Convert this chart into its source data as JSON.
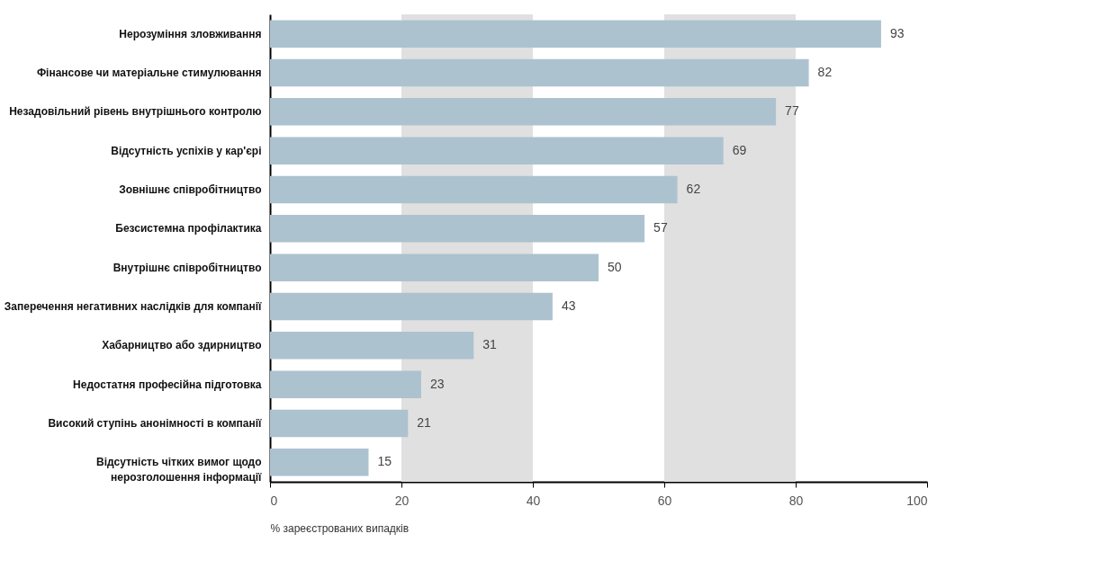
{
  "chart_data": {
    "type": "bar",
    "orientation": "horizontal",
    "xlabel": "% зареєстрованих випадків",
    "categories": [
      "Нерозуміння зловживання",
      "Фінансове чи матеріальне стимулювання",
      "Незадовільний рівень внутрішнього контролю",
      "Відсутність успіхів у кар'єрі",
      "Зовнішнє співробітництво",
      "Безсистемна профілактика",
      "Внутрішнє співробітництво",
      "Заперечення негативних наслідків для компанії",
      "Хабарництво або здирництво",
      "Недостатня професійна підготовка",
      "Високий ступінь анонімності в компанії",
      "Відсутність чітких вимог щодо\nнерозголошення інформації"
    ],
    "values": [
      93,
      82,
      77,
      69,
      62,
      57,
      50,
      43,
      31,
      23,
      21,
      15
    ],
    "color": "#adc2cf",
    "xlim": [
      0,
      100
    ],
    "xticks": [
      0,
      20,
      40,
      60,
      80,
      100
    ],
    "grid": false,
    "data_labels": true,
    "bands": [
      {
        "axis": "x",
        "from": 20,
        "to": 40,
        "color": "#e0e0e0"
      },
      {
        "axis": "x",
        "from": 60,
        "to": 80,
        "color": "#e0e0e0"
      }
    ]
  }
}
